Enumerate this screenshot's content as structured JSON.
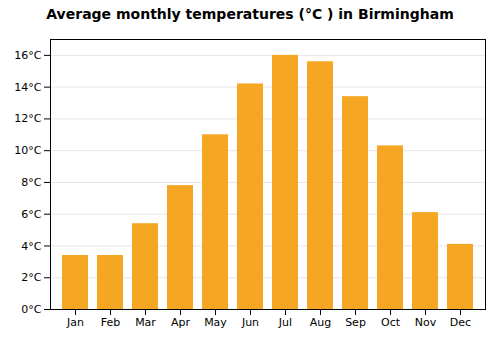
{
  "chart_data": {
    "type": "bar",
    "title": "Average monthly temperatures (°C ) in Birmingham",
    "categories": [
      "Jan",
      "Feb",
      "Mar",
      "Apr",
      "May",
      "Jun",
      "Jul",
      "Aug",
      "Sep",
      "Oct",
      "Nov",
      "Dec"
    ],
    "values": [
      3.4,
      3.4,
      5.4,
      7.8,
      11.0,
      14.2,
      16.0,
      15.6,
      13.4,
      10.3,
      6.1,
      4.1
    ],
    "color": "#F5A623",
    "ylim": [
      0,
      17
    ],
    "yticks": [
      {
        "value": 0,
        "label": "0°C"
      },
      {
        "value": 2,
        "label": "2°C"
      },
      {
        "value": 4,
        "label": "4°C"
      },
      {
        "value": 6,
        "label": "6°C"
      },
      {
        "value": 8,
        "label": "8°C"
      },
      {
        "value": 10,
        "label": "10°C"
      },
      {
        "value": 12,
        "label": "12°C"
      },
      {
        "value": 14,
        "label": "14°C"
      },
      {
        "value": 16,
        "label": "16°C"
      }
    ],
    "grid": true
  }
}
